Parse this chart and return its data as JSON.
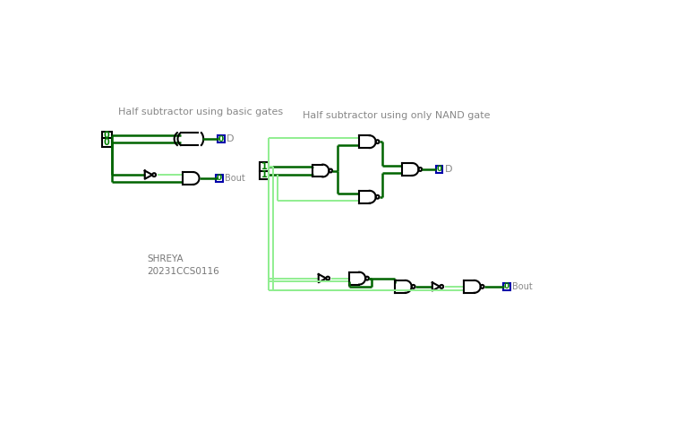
{
  "bg_color": "#ffffff",
  "title1": "Half subtractor using basic gates",
  "title2": "Half subtractor using only NAND gate",
  "author": "SHREYA\n20231CCS0116",
  "wire_dark": "#006400",
  "wire_light": "#90EE90",
  "gate_color": "#000000",
  "label_color": "#008000",
  "box_border": "#00008B",
  "title_color": "#888888"
}
